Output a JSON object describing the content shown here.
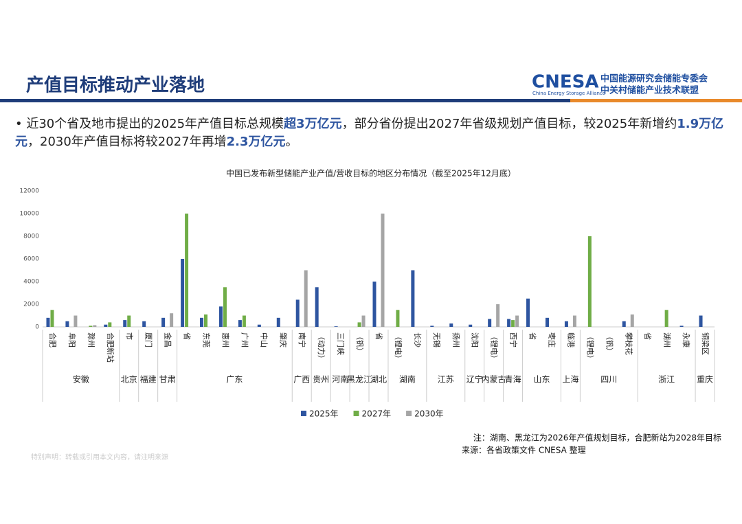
{
  "header": {
    "title": "产值目标推动产业落地",
    "logo": "CNESA",
    "logo_sub": "China Energy Storage Alliance",
    "org1": "中国能源研究会储能专委会",
    "org2": "中关村储能产业技术联盟"
  },
  "bullet": [
    {
      "text": "近30个省及地市提出的2025年产值目标总规模",
      "bold": false
    },
    {
      "text": "超3万亿元",
      "bold": true
    },
    {
      "text": "，部分省份提出2027年省级规划产值目标，较2025年新增约",
      "bold": false
    },
    {
      "text": "1.9万亿元",
      "bold": true
    },
    {
      "text": "，2030年产值目标将较2027年再增",
      "bold": false
    },
    {
      "text": "2.3万亿元",
      "bold": true
    },
    {
      "text": "。",
      "bold": false
    }
  ],
  "chart_data": {
    "type": "bar",
    "title": "中国已发布新型储能产业产值/营收目标的地区分布情况（截至2025年12月底）",
    "groups": [
      {
        "name": "安徽",
        "categories": [
          "合肥",
          "阜阳",
          "滁州",
          "合肥新站"
        ]
      },
      {
        "name": "北京",
        "categories": [
          "市"
        ]
      },
      {
        "name": "福建",
        "categories": [
          "厦门"
        ]
      },
      {
        "name": "甘肃",
        "categories": [
          "金昌"
        ]
      },
      {
        "name": "广东",
        "categories": [
          "省",
          "东莞",
          "惠州",
          "广州",
          "中山",
          "肇庆"
        ]
      },
      {
        "name": "广西",
        "categories": [
          "南宁"
        ]
      },
      {
        "name": "贵州",
        "categories": [
          "（动力）"
        ]
      },
      {
        "name": "河南",
        "categories": [
          "三门峡"
        ]
      },
      {
        "name": "黑龙江",
        "categories": [
          "（钒）"
        ]
      },
      {
        "name": "湖北",
        "categories": [
          "省"
        ]
      },
      {
        "name": "湖南",
        "categories": [
          "（锂电）",
          "长沙"
        ]
      },
      {
        "name": "江苏",
        "categories": [
          "无锡",
          "扬州"
        ]
      },
      {
        "name": "辽宁",
        "categories": [
          "沈阳"
        ]
      },
      {
        "name": "内蒙古",
        "categories": [
          "（锂电）"
        ]
      },
      {
        "name": "青海",
        "categories": [
          "西宁"
        ]
      },
      {
        "name": "山东",
        "categories": [
          "省",
          "枣庄"
        ]
      },
      {
        "name": "上海",
        "categories": [
          "临港"
        ]
      },
      {
        "name": "四川",
        "categories": [
          "（锂电）",
          "（钒）",
          "攀枝花"
        ]
      },
      {
        "name": "浙江",
        "categories": [
          "省",
          "湖州",
          "永康"
        ]
      },
      {
        "name": "重庆",
        "categories": [
          "铜梁区"
        ]
      }
    ],
    "series": [
      {
        "name": "2025年",
        "color": "#2e55a0",
        "values": [
          800,
          500,
          null,
          200,
          600,
          500,
          800,
          6000,
          800,
          1800,
          600,
          200,
          800,
          2400,
          3500,
          50,
          null,
          4000,
          null,
          5000,
          100,
          300,
          200,
          700,
          700,
          2500,
          800,
          500,
          null,
          null,
          500,
          null,
          null,
          100,
          1000
        ]
      },
      {
        "name": "2027年",
        "color": "#70ad47",
        "values": [
          1500,
          null,
          100,
          400,
          1000,
          null,
          null,
          10000,
          1100,
          3500,
          1000,
          null,
          null,
          null,
          null,
          null,
          400,
          null,
          1500,
          null,
          null,
          null,
          null,
          null,
          600,
          null,
          null,
          null,
          8000,
          null,
          null,
          null,
          1500,
          null,
          null
        ]
      },
      {
        "name": "2030年",
        "color": "#a5a5a5",
        "values": [
          null,
          1000,
          150,
          null,
          null,
          null,
          1200,
          null,
          null,
          null,
          null,
          null,
          null,
          5000,
          null,
          null,
          1000,
          10000,
          null,
          null,
          null,
          null,
          null,
          2000,
          1000,
          null,
          null,
          1000,
          null,
          null,
          1100,
          null,
          null,
          null,
          null
        ]
      }
    ],
    "ylim": [
      0,
      12000
    ],
    "yticks": [
      0,
      2000,
      4000,
      6000,
      8000,
      10000,
      12000
    ],
    "grid": false
  },
  "notes": [
    "注：湖南、黑龙江为2026年产值规划目标，合肥新站为2028年目标",
    "来源：各省政策文件   CNESA 整理"
  ],
  "footer": "特别声明：转载或引用本文内容，请注明来源"
}
